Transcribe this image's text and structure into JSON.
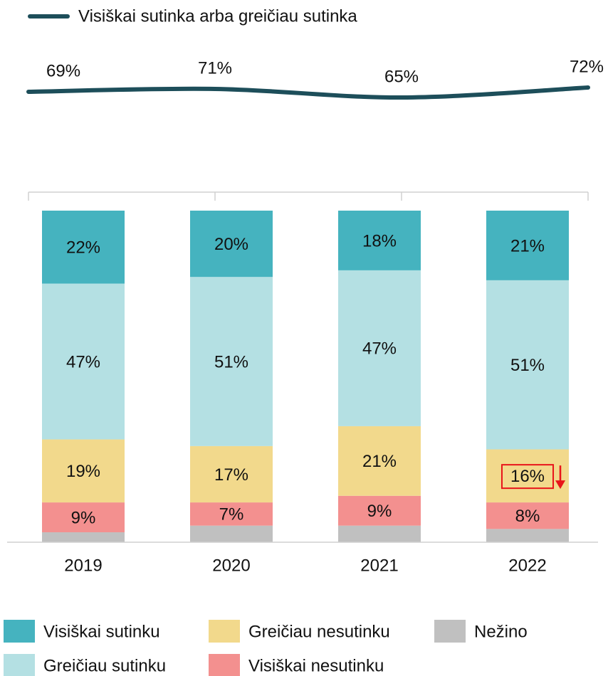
{
  "chart_data": {
    "type": "bar",
    "stacked": true,
    "categories": [
      "2019",
      "2020",
      "2021",
      "2022"
    ],
    "ylim": [
      0,
      100
    ],
    "y2lim": [
      40,
      100
    ],
    "series": [
      {
        "name": "Visiškai sutinku",
        "color": "#45b3bf",
        "values": [
          22,
          20,
          18,
          21
        ],
        "value_labels": [
          "22%",
          "20%",
          "18%",
          "21%"
        ]
      },
      {
        "name": "Greičiau sutinku",
        "color": "#b4e0e3",
        "values": [
          47,
          51,
          47,
          51
        ],
        "value_labels": [
          "47%",
          "51%",
          "47%",
          "51%"
        ]
      },
      {
        "name": "Greičiau nesutinku",
        "color": "#f2d98c",
        "values": [
          19,
          17,
          21,
          16
        ],
        "value_labels": [
          "19%",
          "17%",
          "21%",
          "16%"
        ]
      },
      {
        "name": "Visiškai nesutinku",
        "color": "#f3908f",
        "values": [
          9,
          7,
          9,
          8
        ],
        "value_labels": [
          "9%",
          "7%",
          "9%",
          "8%"
        ]
      },
      {
        "name": "Nežino",
        "color": "#c0c0c0",
        "values": [
          3,
          5,
          5,
          4
        ]
      },
      {
        "name": "Visiškai sutinka arba greičiau sutinka",
        "type": "line",
        "axis": "y2",
        "color": "#1d4e5a",
        "values": [
          69,
          71,
          65,
          72
        ],
        "value_labels": [
          "69%",
          "71%",
          "65%",
          "72%"
        ]
      }
    ]
  }
}
